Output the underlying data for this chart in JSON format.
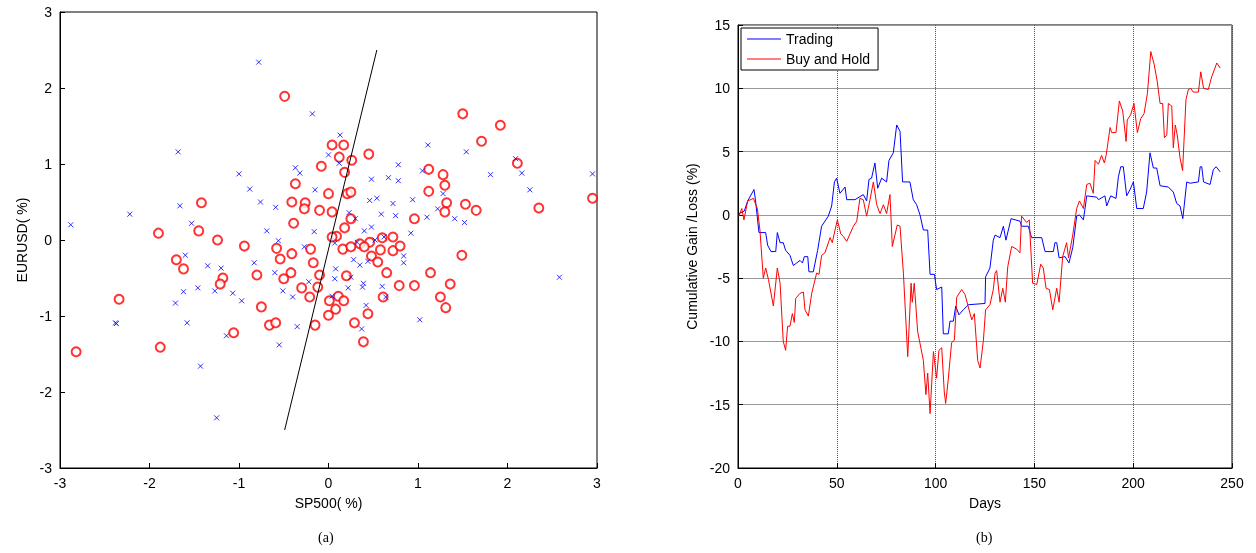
{
  "chart_data": [
    {
      "type": "scatter",
      "xlabel": "SP500( %)",
      "ylabel": "EURUSD( %)",
      "xlim": [
        -3,
        3
      ],
      "xticks": [
        -3,
        -2,
        -1,
        0,
        1,
        2,
        3
      ],
      "ylim": [
        -3,
        3
      ],
      "yticks": [
        -3,
        -2,
        -1,
        0,
        1,
        2,
        3
      ],
      "annotations": [
        "(a)"
      ],
      "series": [
        {
          "color": "#0000ff",
          "marker": "cross",
          "x": [
            -2.88,
            -2.38,
            -2.22,
            -1.68,
            -1.66,
            -1.53,
            -1.6,
            -1.35,
            -1.2,
            -1.62,
            -1.46,
            -1.27,
            -1.07,
            -0.97,
            -1.71,
            -2.37,
            -1.58,
            -1.14,
            -1.43,
            -1.25,
            -0.78,
            -0.18,
            -1.0,
            -0.88,
            -0.76,
            -0.59,
            -0.37,
            -0.32,
            -0.15,
            -0.69,
            -0.56,
            -0.83,
            -0.6,
            -0.51,
            -0.4,
            -0.35,
            -0.55,
            -0.27,
            -0.16,
            -0.22,
            0.13,
            0.0,
            0.12,
            1.11,
            1.54,
            0.78,
            1.05,
            0.48,
            0.67,
            0.78,
            1.81,
            2.09,
            2.16,
            2.25,
            2.95,
            2.58,
            1.28,
            0.94,
            0.46,
            0.54,
            0.72,
            1.22,
            1.1,
            1.41,
            1.52,
            0.59,
            0.75,
            0.23,
            0.3,
            0.92,
            0.4,
            0.48,
            0.52,
            0.62,
            0.07,
            0.32,
            0.84,
            0.84,
            0.28,
            0.44,
            0.35,
            0.08,
            0.25,
            0.07,
            0.22,
            0.39,
            0.38,
            0.6,
            0.64,
            0.04,
            0.42,
            0.37,
            1.02
          ],
          "values": [
            0.2,
            -1.09,
            0.34,
            1.16,
            0.45,
            0.22,
            -0.2,
            -0.34,
            -0.37,
            -0.68,
            -0.63,
            -0.67,
            -0.7,
            -0.8,
            -0.83,
            -1.1,
            -1.09,
            -1.26,
            -1.66,
            -2.34,
            2.34,
            1.66,
            0.87,
            0.67,
            0.5,
            0.43,
            0.95,
            0.88,
            0.66,
            0.12,
            -0.01,
            -0.3,
            -0.43,
            -0.67,
            -0.75,
            -1.14,
            -1.38,
            -0.09,
            0.11,
            -0.55,
            1.38,
            1.12,
            1.01,
            1.25,
            1.16,
            0.99,
            0.91,
            0.8,
            0.82,
            0.78,
            0.86,
            1.07,
            0.88,
            0.66,
            0.87,
            -0.49,
            0.61,
            0.53,
            0.52,
            0.55,
            0.48,
            0.41,
            0.3,
            0.28,
            0.23,
            0.34,
            0.32,
            0.36,
            0.28,
            0.09,
            0.12,
            0.17,
            0.0,
            0.04,
            -0.04,
            -0.03,
            -0.21,
            -0.3,
            -0.26,
            -0.28,
            -0.33,
            -0.38,
            -0.49,
            -0.51,
            -0.63,
            -0.57,
            -0.62,
            -0.61,
            -0.75,
            -0.74,
            -0.86,
            -1.17,
            -1.05
          ]
        },
        {
          "color": "#ff0000",
          "marker": "circle",
          "x": [
            -0.49,
            -0.08,
            -0.37,
            -1.42,
            -1.9,
            -1.45,
            -1.24,
            -0.94,
            -1.7,
            -1.62,
            -1.18,
            -1.21,
            -2.34,
            -1.88,
            -2.82,
            -1.06,
            -0.75,
            -0.66,
            -0.59,
            -0.8,
            -0.58,
            -0.41,
            -0.26,
            -0.27,
            -0.1,
            -0.39,
            -0.54,
            -0.41,
            -0.42,
            -0.5,
            -0.17,
            -0.2,
            -0.1,
            -0.3,
            -0.21,
            -0.15,
            -0.12,
            1.5,
            1.92,
            1.71,
            2.11,
            2.35,
            2.95,
            0.04,
            0.17,
            0.45,
            0.12,
            0.26,
            0.18,
            1.12,
            1.28,
            1.3,
            1.12,
            1.32,
            1.53,
            1.65,
            1.3,
            0.21,
            0.25,
            0.0,
            0.04,
            0.25,
            0.96,
            0.18,
            0.09,
            0.04,
            0.6,
            0.72,
            0.46,
            0.35,
            0.4,
            0.16,
            0.25,
            0.58,
            0.72,
            0.8,
            0.48,
            0.55,
            1.49,
            0.65,
            1.14,
            0.2,
            0.79,
            0.96,
            1.36,
            1.25,
            1.31,
            0.61,
            0.11,
            0.01,
            0.17,
            0.08,
            0.44,
            0.0,
            0.29,
            0.39
          ],
          "values": [
            1.89,
            0.97,
            0.74,
            0.49,
            0.09,
            0.12,
            0.0,
            -0.08,
            -0.26,
            -0.38,
            -0.5,
            -0.58,
            -0.78,
            -1.41,
            -1.47,
            -1.22,
            -0.88,
            -1.12,
            -1.09,
            -0.46,
            -0.11,
            0.5,
            0.49,
            0.41,
            0.39,
            0.22,
            -0.25,
            -0.18,
            -0.43,
            -0.51,
            -0.3,
            -0.12,
            -0.46,
            -0.63,
            -0.75,
            -1.12,
            -0.62,
            1.66,
            1.51,
            1.3,
            1.01,
            0.42,
            0.55,
            1.25,
            1.25,
            1.13,
            1.09,
            1.05,
            0.89,
            0.93,
            0.86,
            0.72,
            0.64,
            0.49,
            0.47,
            0.39,
            0.37,
            0.61,
            0.63,
            0.61,
            0.37,
            0.28,
            0.28,
            0.16,
            0.05,
            0.04,
            0.03,
            0.04,
            -0.03,
            -0.05,
            -0.09,
            -0.12,
            -0.09,
            -0.13,
            -0.14,
            -0.08,
            -0.21,
            -0.29,
            -0.2,
            -0.43,
            -0.43,
            -0.47,
            -0.6,
            -0.6,
            -0.58,
            -0.75,
            -0.89,
            -0.75,
            -0.74,
            -0.8,
            -0.8,
            -0.91,
            -0.97,
            -0.99,
            -1.09,
            -1.34
          ]
        },
        {
          "type": "line",
          "color": "#000000",
          "marker": "none",
          "x": [
            -0.49,
            0.54
          ],
          "values": [
            -2.5,
            2.5
          ]
        }
      ]
    },
    {
      "type": "line",
      "xlabel": "Days",
      "ylabel": "Cumulative Gain /Loss (%)",
      "xlim": [
        0,
        250
      ],
      "xticks": [
        0,
        50,
        100,
        150,
        200,
        250
      ],
      "ylim": [
        -20,
        15
      ],
      "yticks": [
        -20,
        -15,
        -10,
        -5,
        0,
        5,
        10,
        15
      ],
      "grid": true,
      "legend": "top left",
      "marker": "none",
      "annotations": [
        "(b)"
      ],
      "series": [
        {
          "name": "Trading",
          "color": "#0000ff",
          "x": [
            0.5,
            3.2,
            4.9,
            8.1,
            8.9,
            10.6,
            14,
            15,
            16.7,
            19.1,
            19.9,
            21.3,
            22.9,
            24.1,
            26.3,
            28,
            29.7,
            31.4,
            32.6,
            33.6,
            35.3,
            35.9,
            38.1,
            40.3,
            42.3,
            45.7,
            47.4,
            48.8,
            49.9,
            51.6,
            54.2,
            55,
            59.2,
            63.4,
            65.1,
            66.3,
            67.6,
            69.3,
            70.7,
            72.7,
            75.2,
            76.4,
            78.6,
            80.3,
            82,
            83.3,
            87,
            88.7,
            90.4,
            92.1,
            93.8,
            96,
            97.2,
            99.4,
            100.5,
            103.1,
            103.9,
            106.4,
            107.3,
            109,
            110.2,
            111.8,
            114,
            116.6,
            125,
            125.3,
            127.5,
            129.2,
            130.1,
            132.6,
            134.3,
            135.6,
            138.2,
            142.7,
            143.5,
            146.9,
            148.6,
            153.7,
            155.4,
            159.6,
            160.4,
            161.3,
            162.5,
            165.5,
            167.5,
            169.4,
            171.4,
            172.8,
            174.8,
            176.5,
            181.5,
            182.4,
            185.7,
            186.6,
            188.6,
            191.3,
            192.5,
            193.7,
            195,
            196.7,
            198.4,
            200.1,
            201.8,
            205.1,
            206.8,
            208.5,
            210.2,
            211.9,
            213.6,
            217.8,
            220.3,
            222,
            223.7,
            225.1,
            227.1,
            228.8,
            233,
            233.9,
            234.7,
            235.6,
            238.9,
            240.6,
            242,
            244
          ],
          "values": [
            0.1,
            0.3,
            1.1,
            2,
            1.1,
            -1.4,
            -1.4,
            -2.4,
            -2.9,
            -2.9,
            -1.4,
            -2.2,
            -2.2,
            -2.8,
            -3.2,
            -4,
            -3.8,
            -3.6,
            -3.8,
            -3.3,
            -3.3,
            -4.5,
            -4.5,
            -2.8,
            -0.9,
            -0.1,
            0.7,
            2.6,
            2.9,
            1.7,
            2.2,
            1.2,
            1.2,
            1.6,
            1.1,
            2.8,
            2.9,
            4.1,
            2.1,
            2.9,
            2.6,
            4.3,
            4.9,
            7.1,
            6.6,
            2.6,
            2.6,
            1.2,
            0.8,
            0,
            -1.2,
            -1.2,
            -4.7,
            -4.7,
            -5.9,
            -5.7,
            -9.4,
            -9.4,
            -8.4,
            -8.4,
            -7.2,
            -7.9,
            -7.5,
            -7.1,
            -7,
            -4.9,
            -4.2,
            -2,
            -1.6,
            -1.8,
            -0.9,
            -2,
            -0.3,
            -0.5,
            -0.9,
            -0.9,
            -1.8,
            -1.8,
            -2.9,
            -2.9,
            -2.2,
            -2.2,
            -3.4,
            -3.3,
            -3.8,
            -2.6,
            -0.1,
            0,
            -0.4,
            1.5,
            1.4,
            1.2,
            1.5,
            0.7,
            1.5,
            1.3,
            3,
            3.8,
            3.8,
            1.5,
            2,
            2.6,
            0.5,
            0.5,
            1.8,
            4.9,
            3.7,
            3.7,
            2.3,
            2.2,
            1.8,
            0.9,
            0.7,
            -0.3,
            2.6,
            2.5,
            2.6,
            3.8,
            3.8,
            2.6,
            2.4,
            3.6,
            3.8,
            3.4
          ]
        },
        {
          "name": "Buy and Hold",
          "color": "#ff0000",
          "x": [
            0.5,
            1.9,
            3,
            4.9,
            7.8,
            9.8,
            11.1,
            12.8,
            14,
            15.4,
            17.9,
            19.9,
            21.3,
            22.9,
            24.1,
            25.1,
            26.3,
            27.5,
            28.5,
            29.2,
            31.4,
            33.1,
            33.9,
            35.6,
            37.3,
            39.8,
            41,
            42.3,
            44,
            46.6,
            47.7,
            49.1,
            50.3,
            52,
            53.3,
            55,
            56.7,
            58.4,
            60.1,
            61.7,
            63.4,
            65.1,
            66.8,
            68.5,
            70.2,
            71.9,
            73.6,
            75.2,
            76.9,
            78.1,
            80.6,
            82,
            83.7,
            85.9,
            87.6,
            88.2,
            89.2,
            90.9,
            93.8,
            95.1,
            96,
            97.2,
            98.9,
            100.5,
            101.7,
            103.1,
            104.4,
            105.1,
            106.4,
            108.1,
            109.5,
            110.7,
            113.2,
            114.9,
            118.3,
            119.6,
            121.3,
            122.5,
            124.2,
            125.3,
            127.5,
            129.2,
            130.1,
            130.9,
            132.6,
            134,
            135.3,
            136.5,
            138.5,
            141,
            142.7,
            143.5,
            146.1,
            147.4,
            149.1,
            151.2,
            153.2,
            154.5,
            155.9,
            157.6,
            159.3,
            161.3,
            162.5,
            164.3,
            166.3,
            167.3,
            169.4,
            171.4,
            172.8,
            174.8,
            176.5,
            178.1,
            179.8,
            180.7,
            182.4,
            184,
            185.4,
            186.3,
            188.3,
            189.1,
            191.3,
            193,
            194.7,
            196.4,
            197,
            198.7,
            200.4,
            202.1,
            203.8,
            205.5,
            207.2,
            208.9,
            210.6,
            212.2,
            213.6,
            214.9,
            215.8,
            217,
            217.8,
            219.5,
            220.3,
            221.3,
            222.3,
            223.7,
            225,
            226.7,
            227.9,
            229.1,
            230.4,
            233,
            234.2,
            235.6,
            238,
            239.7,
            242.3,
            244
          ],
          "values": [
            -0.1,
            0.5,
            -0.4,
            1.1,
            1.3,
            0.5,
            -1.2,
            -5,
            -4.2,
            -5.1,
            -7.2,
            -4.2,
            -5.4,
            -10,
            -10.7,
            -8.8,
            -8.8,
            -7.8,
            -8.5,
            -6.6,
            -6.2,
            -6.1,
            -7.5,
            -8,
            -6.2,
            -4.6,
            -4.7,
            -3.2,
            -3,
            -1.8,
            -2.2,
            -1.2,
            -0.4,
            -1.5,
            -1.7,
            -2.1,
            -1.5,
            -0.9,
            -0.5,
            1.3,
            1.2,
            -0.1,
            1.2,
            2.6,
            0.8,
            0.1,
            0.8,
            0.1,
            1.6,
            -2.5,
            -0.8,
            -0.9,
            -4.6,
            -11.2,
            -5.4,
            -6.9,
            -5.4,
            -9.2,
            -11.5,
            -14.2,
            -12.5,
            -15.7,
            -10.8,
            -12.9,
            -10.7,
            -10.5,
            -14,
            -14.9,
            -13,
            -10.1,
            -9.9,
            -6.5,
            -5.9,
            -6.3,
            -8.3,
            -7.8,
            -11.5,
            -12.1,
            -9.9,
            -7.5,
            -7.1,
            -5.9,
            -4.6,
            -4.4,
            -6.9,
            -5.8,
            -6.9,
            -4.1,
            -2.5,
            -2.7,
            -3,
            -0.1,
            -0.6,
            -0.4,
            -5.4,
            -5.5,
            -3.9,
            -4.2,
            -5.8,
            -5.9,
            -7.5,
            -5.8,
            -6.9,
            -3.3,
            -2.2,
            -3.4,
            -1.6,
            0.5,
            1.1,
            0.5,
            2.4,
            2.5,
            1.7,
            4.3,
            4,
            4.7,
            4.1,
            4.7,
            6.9,
            6.5,
            6.5,
            9,
            8.2,
            5.8,
            7.5,
            7.9,
            8.8,
            6.5,
            7.6,
            8,
            9.6,
            12.9,
            11.9,
            10.5,
            8.8,
            8.8,
            6.1,
            6.3,
            8.8,
            8.6,
            5.3,
            7.1,
            6.3,
            4.5,
            3.5,
            9.1,
            9.9,
            10,
            9.7,
            9.7,
            11.3,
            10,
            9.9,
            10.9,
            12,
            11.6
          ]
        }
      ]
    }
  ]
}
